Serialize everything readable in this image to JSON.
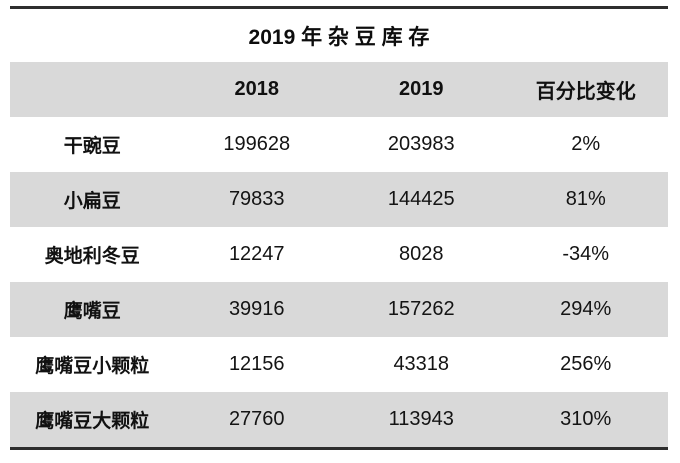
{
  "title": "2019 年 杂 豆 库 存",
  "table": {
    "columns": {
      "c0": "",
      "c1": "2018",
      "c2": "2019",
      "c3": "百分比变化"
    },
    "rows": [
      {
        "label": "干豌豆",
        "v2018": "199628",
        "v2019": "203983",
        "pct": "2%"
      },
      {
        "label": "小扁豆",
        "v2018": "79833",
        "v2019": "144425",
        "pct": "81%"
      },
      {
        "label": "奥地利冬豆",
        "v2018": "12247",
        "v2019": "8028",
        "pct": "-34%"
      },
      {
        "label": "鹰嘴豆",
        "v2018": "39916",
        "v2019": "157262",
        "pct": "294%"
      },
      {
        "label": "鹰嘴豆小颗粒",
        "v2018": "12156",
        "v2019": "43318",
        "pct": "256%"
      },
      {
        "label": "鹰嘴豆大颗粒",
        "v2018": "27760",
        "v2019": "113943",
        "pct": "310%"
      }
    ]
  },
  "colors": {
    "header_row_bg": "#d9d9d9",
    "alt_row_bg": "#d9d9d9",
    "white_row_bg": "#ffffff",
    "rule_border": "#2e2e2e",
    "text": "#111111"
  },
  "chart_data": {
    "type": "table",
    "title": "2019 年 杂豆库存",
    "categories": [
      "干豌豆",
      "小扁豆",
      "奥地利冬豆",
      "鹰嘴豆",
      "鹰嘴豆小颗粒",
      "鹰嘴豆大颗粒"
    ],
    "series": [
      {
        "name": "2018",
        "values": [
          199628,
          79833,
          12247,
          39916,
          12156,
          27760
        ]
      },
      {
        "name": "2019",
        "values": [
          203983,
          144425,
          8028,
          157262,
          43318,
          113943
        ]
      },
      {
        "name": "百分比变化",
        "values": [
          "2%",
          "81%",
          "-34%",
          "294%",
          "256%",
          "310%"
        ]
      }
    ],
    "layout": {
      "striped_rows": true,
      "top_bottom_rules": true,
      "column_alignment": "center"
    }
  }
}
